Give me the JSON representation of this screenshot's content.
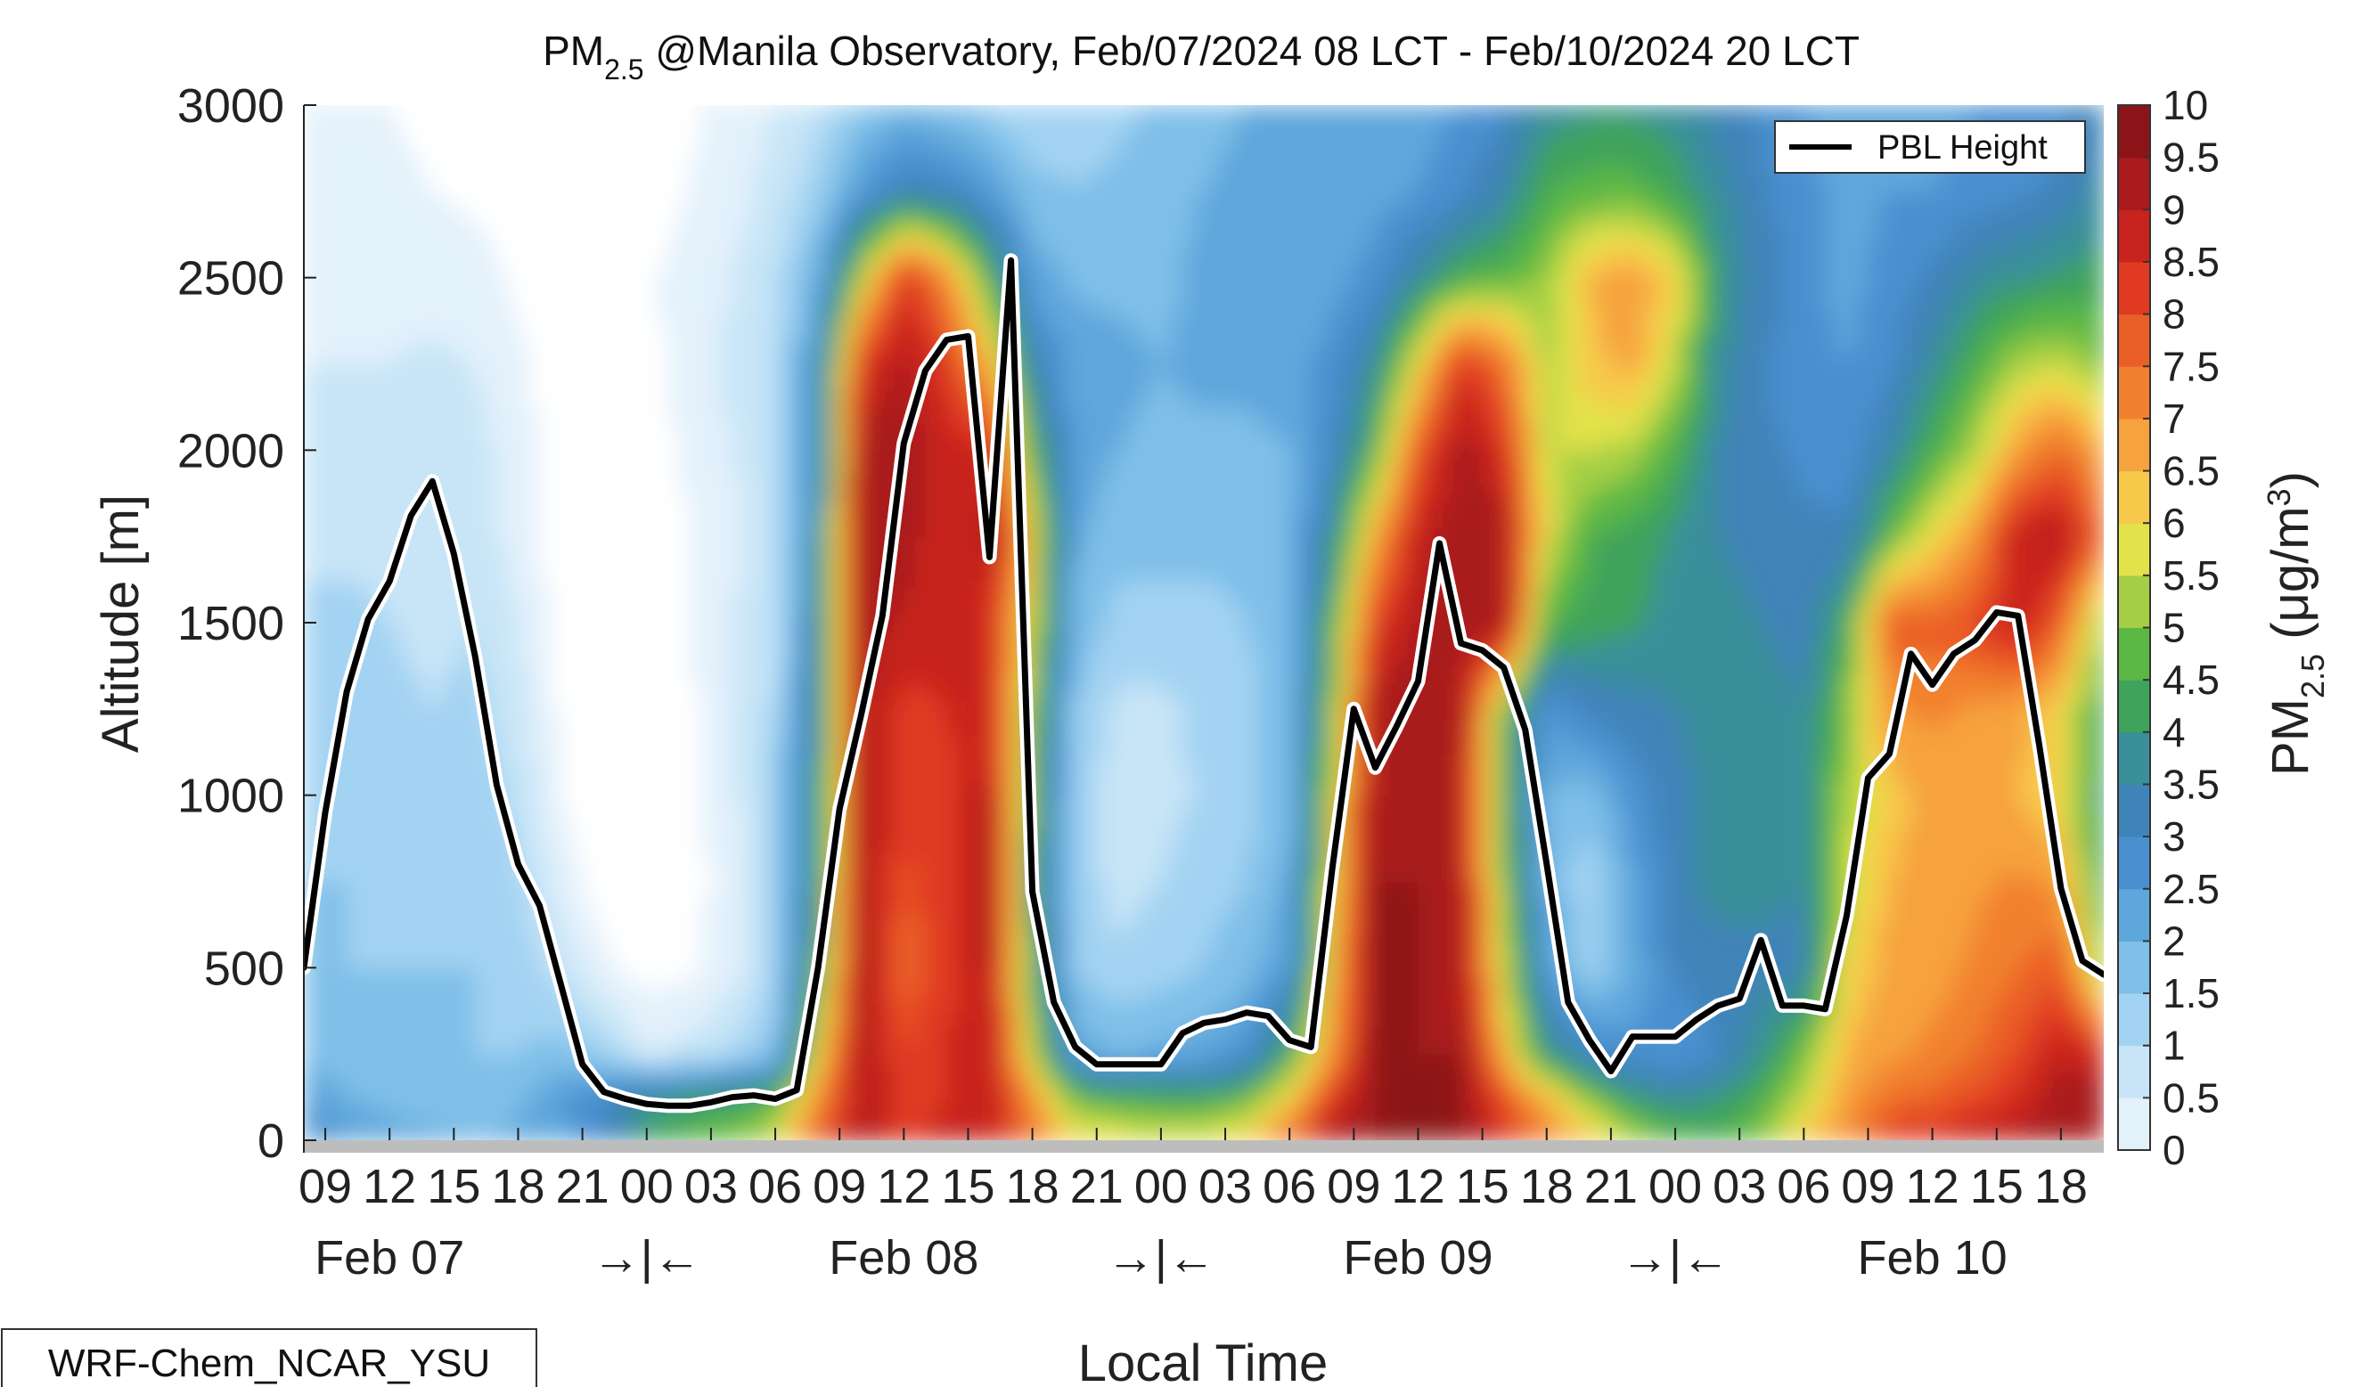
{
  "chart_data": {
    "type": "heatmap",
    "title": {
      "prefix": "PM",
      "subscript": "2.5",
      "suffix": " @Manila Observatory, Feb/07/2024 08 LCT - Feb/10/2024 20 LCT"
    },
    "xlabel": "Local Time",
    "ylabel": "Altitude [m]",
    "ylim": [
      0,
      3000
    ],
    "xlim": [
      8,
      92
    ],
    "yticks": [
      0,
      500,
      1000,
      1500,
      2000,
      2500,
      3000
    ],
    "hour_tick_hours": [
      9,
      12,
      15,
      18,
      21,
      24,
      27,
      30,
      33,
      36,
      39,
      42,
      45,
      48,
      51,
      54,
      57,
      60,
      63,
      66,
      69,
      72,
      75,
      78,
      81,
      84,
      87,
      90
    ],
    "hour_tick_labels": [
      "09",
      "12",
      "15",
      "18",
      "21",
      "00",
      "03",
      "06",
      "09",
      "12",
      "15",
      "18",
      "21",
      "00",
      "03",
      "06",
      "09",
      "12",
      "15",
      "18",
      "21",
      "00",
      "03",
      "06",
      "09",
      "12",
      "15",
      "18"
    ],
    "day_labels": [
      {
        "hour": 12,
        "text": "Feb 07"
      },
      {
        "hour": 36,
        "text": "Feb 08"
      },
      {
        "hour": 60,
        "text": "Feb 09"
      },
      {
        "hour": 84,
        "text": "Feb 10"
      }
    ],
    "day_break_hours": [
      24,
      48,
      72
    ],
    "day_break_text": "→|←",
    "colorbar": {
      "label_prefix": "PM",
      "label_subscript": "2.5",
      "label_units": " (μg/m",
      "label_units_sup": "3",
      "label_units_close": ")",
      "range": [
        0,
        10
      ],
      "tick_values": [
        0,
        0.5,
        1,
        1.5,
        2,
        2.5,
        3,
        3.5,
        4,
        4.5,
        5,
        5.5,
        6,
        6.5,
        7,
        7.5,
        8,
        8.5,
        9,
        9.5,
        10
      ],
      "tick_labels": [
        "0",
        "0.5",
        "1",
        "1.5",
        "2",
        "2.5",
        "3",
        "3.5",
        "4",
        "4.5",
        "5",
        "5.5",
        "6",
        "6.5",
        "7",
        "7.5",
        "8",
        "8.5",
        "9",
        "9.5",
        "10"
      ],
      "colors": [
        "#ffffff",
        "#e3f1fb",
        "#c7e5f7",
        "#a3d3f2",
        "#7fbfe8",
        "#5ea7dc",
        "#4a90d0",
        "#3f84b8",
        "#3a8f9a",
        "#3fa35c",
        "#5cb845",
        "#a4cf45",
        "#e3e24a",
        "#f8c84b",
        "#f6a23e",
        "#f2812f",
        "#ea5f27",
        "#e03b22",
        "#c8231e",
        "#a91a1c",
        "#8c1418"
      ]
    },
    "pbl_height": {
      "legend": "PBL Height",
      "hours": [
        8,
        9,
        10,
        11,
        12,
        13,
        14,
        15,
        16,
        17,
        18,
        19,
        20,
        21,
        22,
        23,
        24,
        25,
        26,
        27,
        28,
        29,
        30,
        31,
        32,
        33,
        34,
        35,
        36,
        37,
        38,
        39,
        40,
        41,
        42,
        43,
        44,
        45,
        46,
        47,
        48,
        49,
        50,
        51,
        52,
        53,
        54,
        55,
        56,
        57,
        58,
        59,
        60,
        61,
        62,
        63,
        64,
        65,
        66,
        67,
        68,
        69,
        70,
        71,
        72,
        73,
        74,
        75,
        76,
        77,
        78,
        79,
        80,
        81,
        82,
        83,
        84,
        85,
        86,
        87,
        88,
        89,
        90,
        91,
        92
      ],
      "values": [
        500,
        950,
        1300,
        1510,
        1620,
        1810,
        1910,
        1700,
        1400,
        1030,
        800,
        680,
        450,
        220,
        140,
        120,
        105,
        100,
        100,
        110,
        125,
        130,
        120,
        145,
        500,
        960,
        1230,
        1520,
        2020,
        2230,
        2320,
        2330,
        1690,
        2550,
        720,
        400,
        270,
        220,
        220,
        220,
        220,
        310,
        340,
        350,
        370,
        360,
        290,
        270,
        790,
        1250,
        1080,
        1200,
        1330,
        1730,
        1440,
        1420,
        1370,
        1190,
        800,
        400,
        290,
        200,
        300,
        300,
        300,
        350,
        390,
        410,
        580,
        390,
        390,
        380,
        650,
        1050,
        1120,
        1410,
        1320,
        1410,
        1450,
        1530,
        1520,
        1140,
        730,
        520,
        480
      ]
    },
    "pm25_grid": {
      "note": "Coarse estimate of colour-contour field: rows are altitude levels (m), columns are local-time hours (every 2 h, 8 to 92). Values in μg/m3.",
      "altitudes": [
        0,
        125,
        250,
        500,
        750,
        1000,
        1250,
        1500,
        1750,
        2000,
        2250,
        2500,
        2750,
        3000
      ],
      "hours": [
        8,
        10,
        12,
        14,
        16,
        18,
        20,
        22,
        24,
        26,
        28,
        30,
        32,
        34,
        36,
        38,
        40,
        42,
        44,
        46,
        48,
        50,
        52,
        54,
        56,
        58,
        60,
        62,
        64,
        66,
        68,
        70,
        72,
        74,
        76,
        78,
        80,
        82,
        84,
        86,
        88,
        90,
        92
      ],
      "values": [
        [
          3.5,
          3.0,
          2.8,
          2.6,
          2.5,
          2.6,
          2.8,
          3.5,
          4.8,
          5.2,
          5.5,
          6.2,
          8.5,
          9.6,
          8.8,
          9.2,
          9.5,
          8.0,
          6.5,
          6.5,
          6.3,
          6.4,
          6.8,
          8.2,
          9.9,
          10,
          10,
          10,
          9.0,
          7.8,
          6.8,
          6.0,
          5.2,
          5.0,
          5.6,
          6.8,
          7.5,
          8.9,
          9.0,
          9.5,
          9.6,
          9.9,
          10
        ],
        [
          3.0,
          2.5,
          2.3,
          2.2,
          2.2,
          2.4,
          3.0,
          3.5,
          4.2,
          4.5,
          4.7,
          5.0,
          7.5,
          9.6,
          8.8,
          9.0,
          9.5,
          7.5,
          5.3,
          5.0,
          4.8,
          4.8,
          5.2,
          6.5,
          8.8,
          10,
          10,
          10,
          8.5,
          7.0,
          5.5,
          4.5,
          4.2,
          4.5,
          5.0,
          6.0,
          7.3,
          8.0,
          8.2,
          8.6,
          9.0,
          9.8,
          9.9
        ],
        [
          2.4,
          2.2,
          2.0,
          2.0,
          2.0,
          2.0,
          2.2,
          1.8,
          1.0,
          1.2,
          1.6,
          2.2,
          6.5,
          9.8,
          8.5,
          9.0,
          9.5,
          6.0,
          2.8,
          2.5,
          2.6,
          2.8,
          3.2,
          5.0,
          7.5,
          10,
          10,
          10,
          7.0,
          4.4,
          3.6,
          3.2,
          3.0,
          3.5,
          4.4,
          5.4,
          7.0,
          7.4,
          7.6,
          8.0,
          8.6,
          9.4,
          9.0
        ],
        [
          2.2,
          2.0,
          2.0,
          2.0,
          2.0,
          1.8,
          1.3,
          0.6,
          0.3,
          0.4,
          0.8,
          1.6,
          5.0,
          9.8,
          8.2,
          8.8,
          9.6,
          5.0,
          2.0,
          1.6,
          1.8,
          2.0,
          2.3,
          3.0,
          7.0,
          10,
          10,
          9.8,
          6.0,
          3.0,
          1.8,
          2.6,
          3.6,
          3.8,
          3.8,
          3.8,
          6.5,
          7.2,
          7.3,
          7.6,
          8.0,
          8.4,
          5.4
        ],
        [
          2.0,
          2.0,
          1.8,
          1.8,
          1.9,
          1.6,
          0.8,
          0.2,
          0.1,
          0.3,
          0.8,
          1.8,
          4.5,
          9.8,
          8.4,
          8.8,
          9.6,
          4.8,
          1.8,
          1.3,
          1.5,
          1.8,
          2.0,
          2.6,
          6.5,
          10,
          10,
          9.5,
          5.5,
          2.5,
          1.6,
          2.8,
          3.8,
          4.2,
          4.2,
          4.0,
          6.0,
          7.0,
          7.2,
          7.4,
          7.6,
          7.4,
          4.4
        ],
        [
          1.9,
          1.9,
          1.7,
          1.6,
          1.8,
          1.4,
          0.5,
          0.1,
          0.1,
          0.3,
          0.9,
          1.8,
          4.4,
          9.8,
          8.7,
          8.8,
          9.6,
          5.0,
          1.8,
          1.2,
          1.3,
          1.6,
          1.8,
          2.4,
          6.0,
          10,
          9.9,
          9.5,
          5.0,
          2.5,
          2.2,
          3.2,
          3.8,
          4.2,
          4.2,
          4.0,
          5.8,
          6.8,
          7.2,
          7.2,
          7.0,
          6.4,
          4.2
        ],
        [
          1.8,
          1.8,
          1.6,
          1.5,
          1.6,
          1.2,
          0.4,
          0.1,
          0.1,
          0.4,
          1.0,
          1.6,
          4.2,
          9.8,
          8.8,
          9.0,
          9.4,
          5.4,
          2.0,
          1.4,
          1.4,
          1.6,
          1.8,
          2.4,
          5.5,
          9.8,
          9.9,
          9.6,
          5.4,
          3.0,
          3.6,
          3.8,
          4.0,
          4.2,
          4.2,
          4.0,
          5.4,
          7.4,
          7.6,
          7.4,
          7.2,
          6.6,
          4.6
        ],
        [
          1.6,
          1.6,
          1.5,
          1.4,
          1.5,
          1.0,
          0.3,
          0.1,
          0.1,
          0.5,
          1.0,
          1.4,
          4.0,
          9.8,
          9.4,
          9.2,
          9.0,
          6.0,
          2.4,
          1.8,
          1.8,
          1.8,
          2.0,
          2.4,
          5.0,
          8.8,
          9.6,
          9.8,
          9.8,
          5.0,
          4.8,
          4.6,
          4.2,
          4.2,
          4.0,
          3.8,
          4.8,
          8.4,
          8.2,
          8.6,
          9.4,
          8.2,
          5.4
        ],
        [
          1.4,
          1.4,
          1.4,
          1.4,
          1.3,
          0.8,
          0.2,
          0.1,
          0.1,
          0.5,
          0.9,
          1.2,
          3.8,
          9.8,
          9.8,
          9.0,
          9.8,
          6.5,
          2.6,
          2.2,
          2.2,
          2.2,
          2.2,
          2.4,
          4.2,
          7.2,
          9.4,
          9.8,
          9.8,
          6.2,
          5.0,
          4.8,
          4.4,
          4.0,
          3.8,
          3.6,
          3.6,
          5.2,
          6.4,
          7.4,
          9.4,
          9.6,
          8.0
        ],
        [
          1.2,
          1.2,
          1.2,
          1.3,
          1.2,
          0.7,
          0.2,
          0.1,
          0.2,
          0.6,
          1.0,
          1.2,
          3.6,
          9.8,
          9.8,
          9.2,
          9.2,
          5.0,
          2.8,
          2.5,
          2.4,
          2.4,
          2.4,
          2.5,
          3.4,
          5.2,
          8.4,
          9.8,
          9.0,
          6.0,
          6.0,
          5.8,
          5.0,
          4.0,
          3.6,
          3.4,
          3.2,
          4.0,
          5.0,
          5.8,
          7.4,
          8.2,
          7.0
        ],
        [
          1.0,
          1.0,
          1.0,
          1.1,
          1.0,
          0.6,
          0.3,
          0.2,
          0.3,
          0.8,
          1.1,
          1.3,
          3.4,
          9.0,
          9.6,
          8.8,
          7.0,
          3.8,
          2.8,
          2.6,
          2.5,
          2.6,
          2.6,
          2.7,
          3.2,
          4.2,
          6.4,
          9.0,
          8.0,
          5.8,
          6.8,
          7.2,
          6.0,
          4.2,
          3.6,
          3.2,
          3.0,
          3.4,
          4.2,
          5.0,
          5.8,
          6.0,
          5.4
        ],
        [
          0.8,
          0.8,
          0.8,
          0.8,
          0.7,
          0.4,
          0.2,
          0.2,
          0.4,
          0.7,
          1.0,
          1.4,
          2.6,
          6.0,
          9.0,
          7.6,
          5.0,
          2.8,
          2.4,
          2.4,
          2.4,
          2.6,
          2.6,
          2.7,
          2.8,
          3.2,
          4.2,
          5.0,
          5.2,
          5.6,
          7.0,
          7.4,
          6.6,
          4.4,
          3.8,
          3.2,
          2.8,
          3.2,
          3.6,
          4.2,
          4.4,
          4.6,
          4.8
        ],
        [
          0.7,
          0.6,
          0.6,
          0.5,
          0.4,
          0.3,
          0.3,
          0.3,
          0.3,
          0.5,
          0.8,
          1.2,
          1.8,
          3.0,
          3.8,
          3.6,
          3.0,
          2.2,
          2.0,
          2.2,
          2.4,
          2.5,
          2.6,
          2.7,
          2.6,
          2.8,
          3.0,
          3.4,
          4.0,
          5.0,
          5.2,
          5.2,
          4.8,
          4.2,
          3.6,
          3.2,
          2.8,
          3.0,
          3.0,
          3.2,
          3.4,
          3.6,
          4.2
        ],
        [
          0.6,
          0.6,
          0.5,
          0.4,
          0.3,
          0.2,
          0.2,
          0.3,
          0.3,
          0.4,
          0.7,
          1.0,
          1.4,
          2.0,
          2.4,
          2.2,
          1.8,
          1.6,
          1.6,
          1.8,
          2.2,
          2.4,
          2.5,
          2.6,
          2.6,
          2.6,
          2.8,
          3.0,
          3.4,
          4.2,
          4.4,
          4.4,
          4.2,
          3.8,
          3.4,
          3.0,
          2.6,
          2.8,
          2.8,
          3.0,
          3.2,
          3.4,
          3.8
        ]
      ]
    }
  },
  "model_label": "WRF-Chem_NCAR_YSU"
}
